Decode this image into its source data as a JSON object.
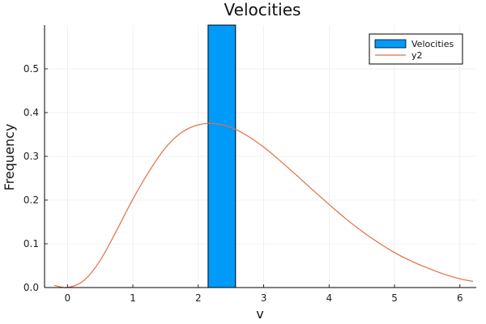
{
  "chart_data": {
    "type": "bar",
    "title": "Velocities",
    "xlabel": "v",
    "ylabel": "Frequency",
    "xlim": [
      -0.35,
      6.25
    ],
    "ylim": [
      0,
      0.6
    ],
    "xticks": [
      0,
      1,
      2,
      3,
      4,
      5,
      6
    ],
    "yticks": [
      0.0,
      0.1,
      0.2,
      0.3,
      0.4,
      0.5
    ],
    "ytick_labels": [
      "0.0",
      "0.1",
      "0.2",
      "0.3",
      "0.4",
      "0.5"
    ],
    "grid": true,
    "legend_position": "top-right",
    "series": [
      {
        "name": "Velocities",
        "kind": "histogram",
        "color": "#009af9",
        "bins": [
          {
            "x0": 2.15,
            "x1": 2.57,
            "value": 0.6
          }
        ]
      },
      {
        "name": "y2",
        "kind": "line",
        "color": "#e26f46",
        "x": [
          -0.2,
          0.0,
          0.25,
          0.5,
          0.75,
          1.0,
          1.25,
          1.5,
          1.75,
          2.0,
          2.25,
          2.5,
          2.75,
          3.0,
          3.25,
          3.5,
          3.75,
          4.0,
          4.25,
          4.5,
          4.75,
          5.0,
          5.25,
          5.5,
          5.75,
          6.0,
          6.2
        ],
        "y": [
          0.005,
          0.0,
          0.016,
          0.062,
          0.13,
          0.202,
          0.266,
          0.32,
          0.355,
          0.372,
          0.375,
          0.366,
          0.347,
          0.321,
          0.29,
          0.257,
          0.223,
          0.19,
          0.158,
          0.129,
          0.103,
          0.08,
          0.061,
          0.045,
          0.031,
          0.02,
          0.014
        ]
      }
    ]
  }
}
